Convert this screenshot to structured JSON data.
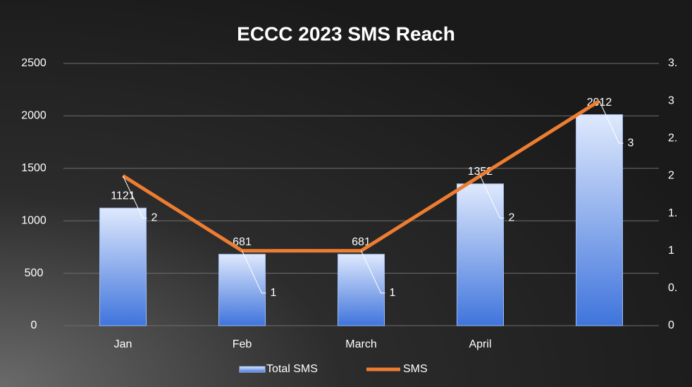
{
  "chart_data": {
    "type": "bar",
    "title": "ECCC 2023 SMS Reach",
    "categories": [
      "Jan",
      "Feb",
      "March",
      "April",
      null
    ],
    "series": [
      {
        "name": "Total SMS",
        "type": "bar",
        "color": "#3f74dc",
        "values": [
          1121,
          681,
          681,
          1352,
          2012
        ]
      },
      {
        "name": "SMS",
        "type": "line",
        "color": "#ed7d31",
        "axis": "y2",
        "values": [
          2,
          1,
          1,
          2,
          3
        ]
      }
    ],
    "ylim": [
      0,
      2500
    ],
    "yticks": [
      0,
      500,
      1000,
      1500,
      2000,
      2500
    ],
    "y2lim": [
      0,
      3.5
    ],
    "y2ticks": [
      0,
      {
        "value": 0.5,
        "label": "0."
      },
      1,
      {
        "value": 1.5,
        "label": "1."
      },
      2,
      {
        "value": 2.5,
        "label": "2."
      },
      3,
      {
        "value": 3.5,
        "label": "3."
      }
    ],
    "grid": true,
    "legend": "bottom"
  }
}
